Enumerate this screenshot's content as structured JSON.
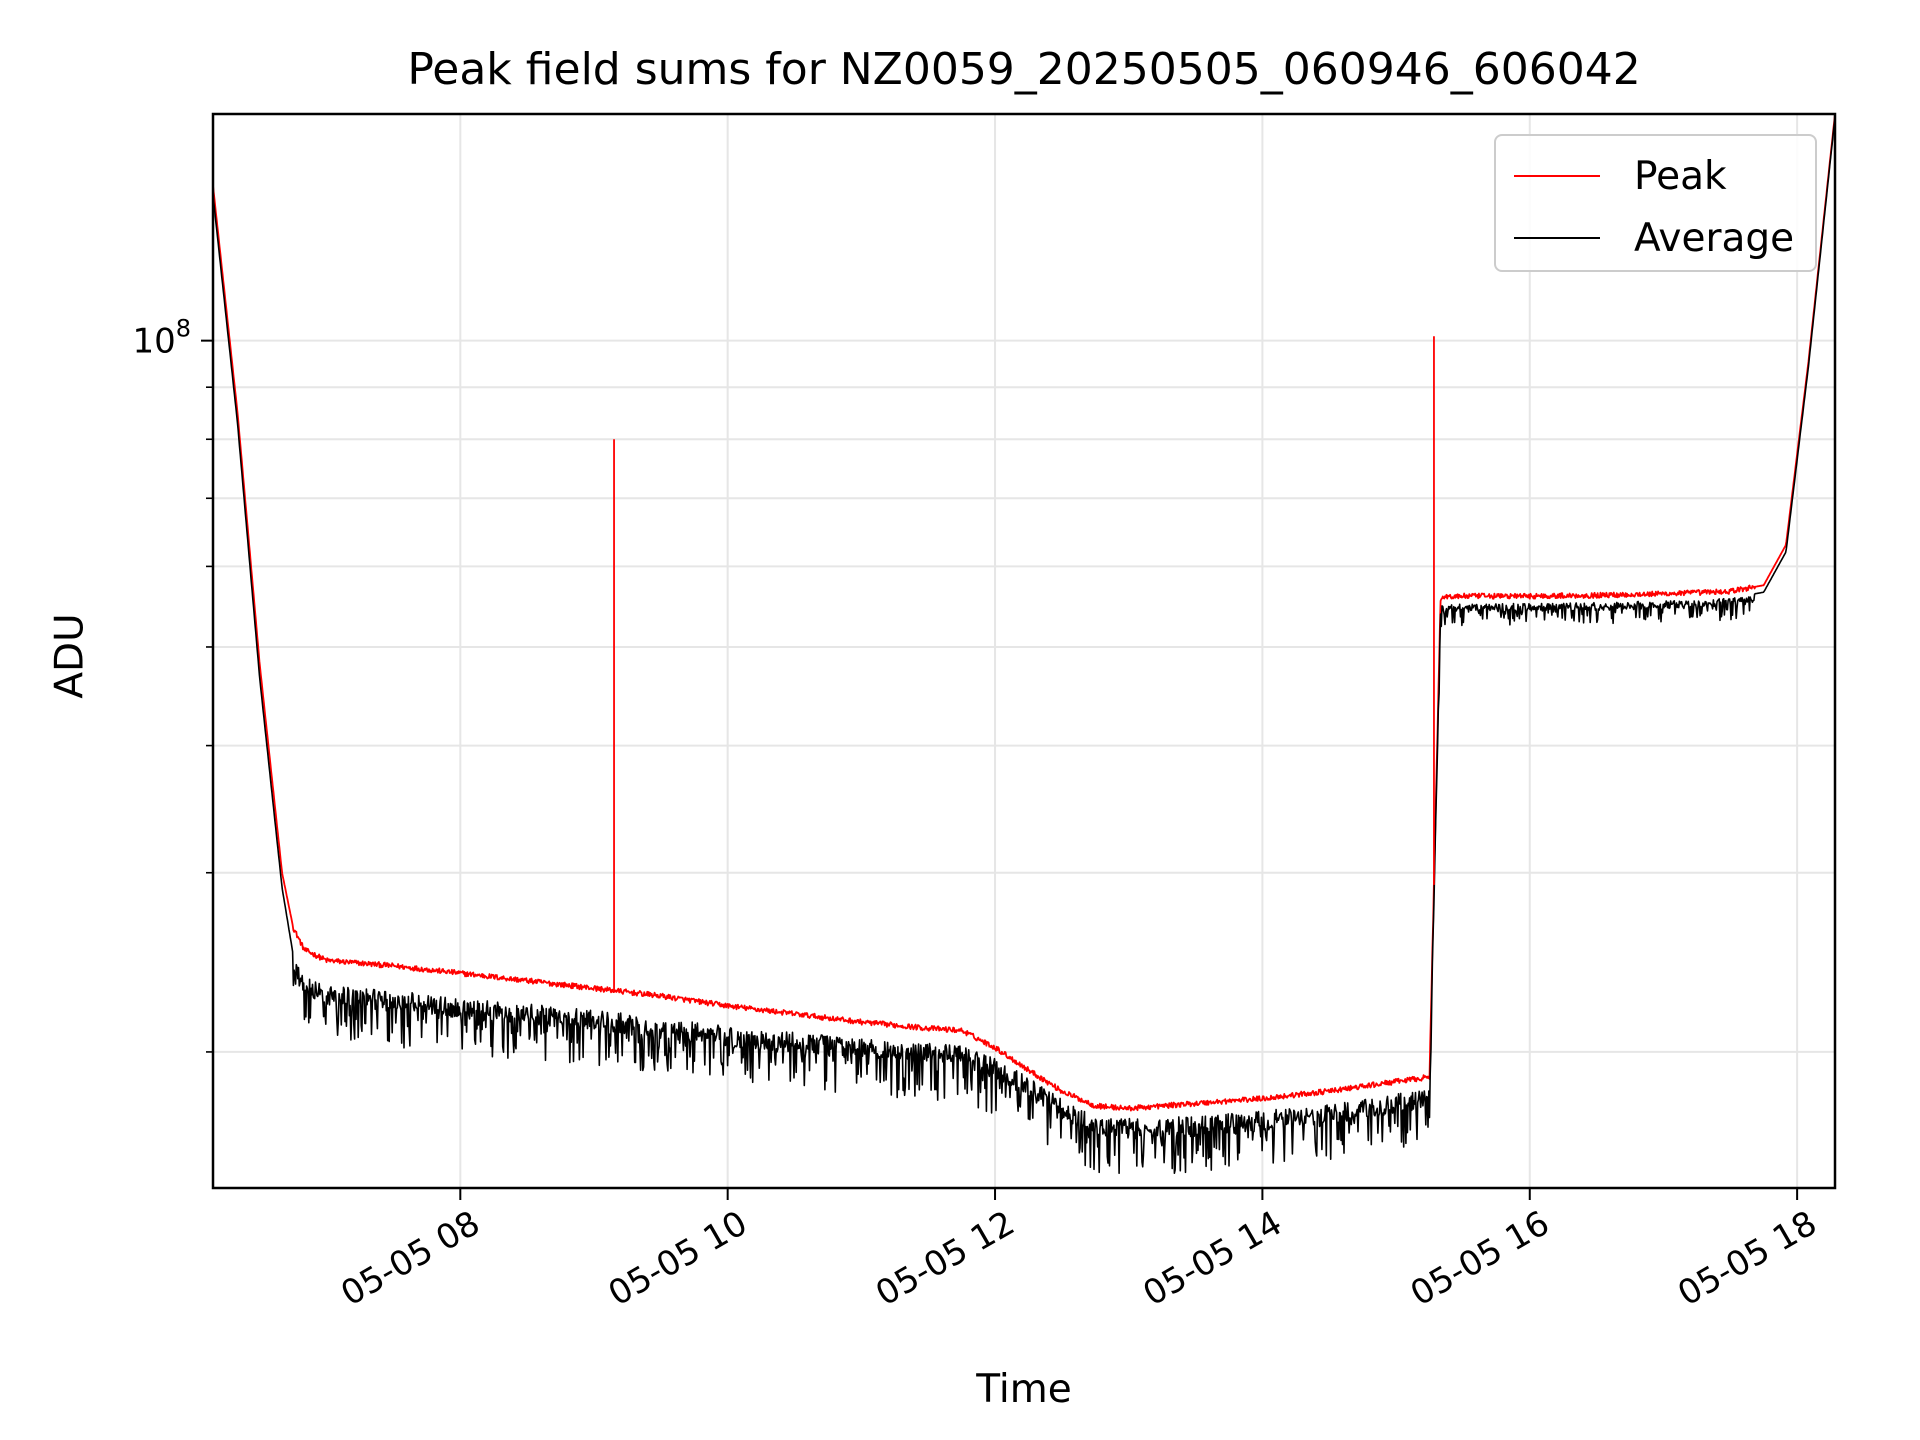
{
  "chart_data": {
    "type": "line",
    "title": "Peak field sums for NZ0059_20250505_060946_606042",
    "xlabel": "Time",
    "ylabel": "ADU",
    "y_scale": "log",
    "grid": true,
    "legend_placement": "top-right",
    "x_range": [
      "05-05 06:09",
      "05-05 18:17"
    ],
    "ylim": [
      14700000,
      167000000
    ],
    "x_ticks": [
      "05-05 08",
      "05-05 10",
      "05-05 12",
      "05-05 14",
      "05-05 16",
      "05-05 18"
    ],
    "y_ticks": [
      {
        "label_base": "10",
        "label_exp": "8",
        "value": 100000000
      }
    ],
    "series": [
      {
        "name": "Peak",
        "color": "#ff0000",
        "x": [
          "05-05 06:09",
          "05-05 06:20",
          "05-05 06:30",
          "05-05 06:40",
          "05-05 06:45",
          "05-05 06:50",
          "05-05 07:00",
          "05-05 07:30",
          "05-05 08:00",
          "05-05 08:30",
          "05-05 09:00",
          "05-05 09:30",
          "05-05 10:00",
          "05-05 10:30",
          "05-05 11:00",
          "05-05 11:30",
          "05-05 11:45",
          "05-05 12:00",
          "05-05 12:15",
          "05-05 12:30",
          "05-05 12:45",
          "05-05 13:00",
          "05-05 13:30",
          "05-05 14:00",
          "05-05 14:30",
          "05-05 15:00",
          "05-05 15:15",
          "05-05 15:20",
          "05-05 15:30",
          "05-05 16:00",
          "05-05 16:30",
          "05-05 17:00",
          "05-05 17:30",
          "05-05 17:45",
          "05-05 17:55",
          "05-05 18:05",
          "05-05 18:17"
        ],
        "values": [
          142000000,
          85000000,
          48000000,
          30000000,
          26500000,
          25200000,
          24600000,
          24300000,
          23900000,
          23500000,
          23100000,
          22700000,
          22200000,
          21800000,
          21400000,
          21100000,
          21000000,
          20200000,
          19200000,
          18300000,
          17700000,
          17600000,
          17800000,
          18000000,
          18300000,
          18700000,
          18900000,
          56000000,
          56100000,
          56100000,
          56200000,
          56400000,
          56700000,
          57500000,
          63000000,
          95000000,
          167000000
        ]
      },
      {
        "name": "Average",
        "color": "#000000",
        "x": [
          "05-05 06:09",
          "05-05 06:20",
          "05-05 06:30",
          "05-05 06:40",
          "05-05 06:45",
          "05-05 06:50",
          "05-05 07:00",
          "05-05 07:30",
          "05-05 08:00",
          "05-05 08:30",
          "05-05 09:00",
          "05-05 09:30",
          "05-05 10:00",
          "05-05 10:30",
          "05-05 11:00",
          "05-05 11:30",
          "05-05 11:45",
          "05-05 12:00",
          "05-05 12:15",
          "05-05 12:30",
          "05-05 12:45",
          "05-05 13:00",
          "05-05 13:30",
          "05-05 14:00",
          "05-05 14:30",
          "05-05 15:00",
          "05-05 15:15",
          "05-05 15:20",
          "05-05 15:30",
          "05-05 16:00",
          "05-05 16:30",
          "05-05 17:00",
          "05-05 17:30",
          "05-05 17:45",
          "05-05 17:55",
          "05-05 18:05",
          "05-05 18:17"
        ],
        "values": [
          139000000,
          83000000,
          46500000,
          29000000,
          24900000,
          23700000,
          23300000,
          23000000,
          22600000,
          22300000,
          22000000,
          21600000,
          21200000,
          20900000,
          20600000,
          20400000,
          20300000,
          19700000,
          18900000,
          18000000,
          17300000,
          17200000,
          17300000,
          17500000,
          17800000,
          18200000,
          18400000,
          55000000,
          55100000,
          55200000,
          55300000,
          55500000,
          55800000,
          56600000,
          62000000,
          94000000,
          166000000
        ]
      }
    ],
    "annotations": [
      {
        "series": "Peak",
        "x": "05-05 09:09",
        "y": 80000000,
        "kind": "spike"
      },
      {
        "series": "Peak",
        "x": "05-05 15:17",
        "y": 101000000,
        "kind": "spike"
      }
    ]
  }
}
